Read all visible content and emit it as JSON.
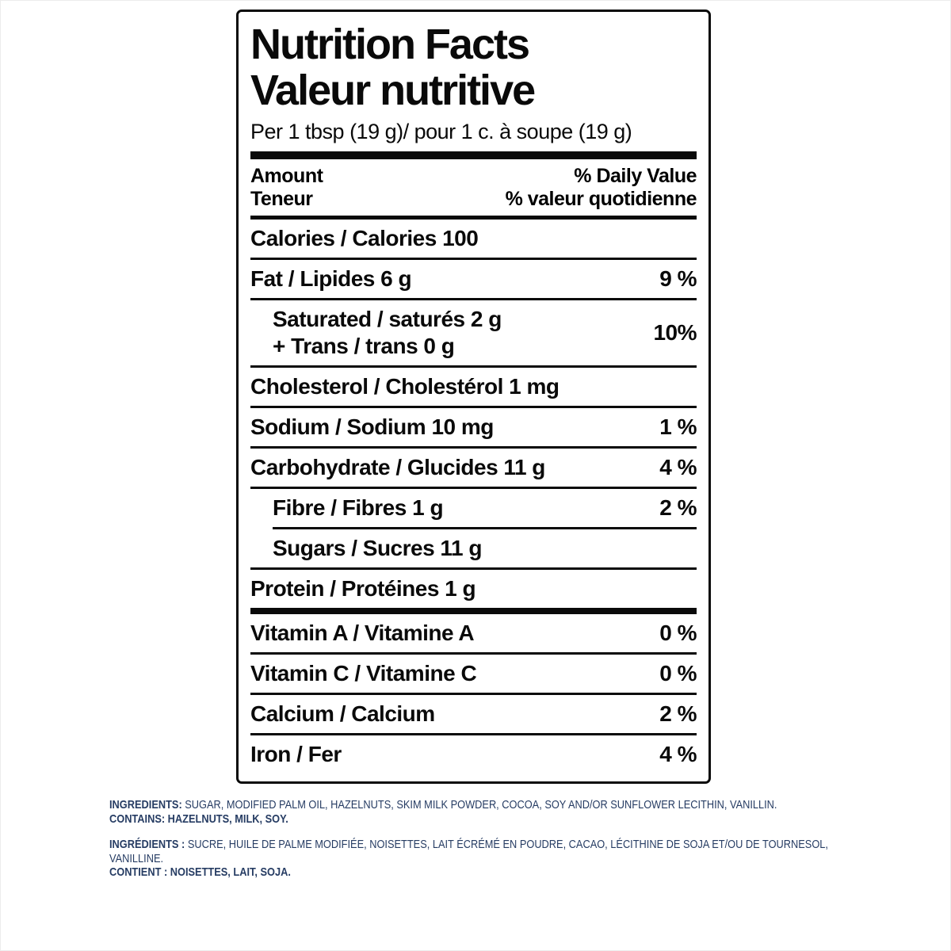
{
  "colors": {
    "ink": "#0a0a0a",
    "ingredients_navy": "#263c63",
    "background": "#ffffff"
  },
  "label": {
    "title_en": "Nutrition Facts",
    "title_fr": "Valeur nutritive",
    "serving": "Per 1 tbsp (19 g)/ pour 1 c. à soupe (19 g)",
    "header": {
      "amount_en": "Amount",
      "amount_fr": "Teneur",
      "daily_value_en": "% Daily Value",
      "daily_value_fr": "% valeur quotidienne"
    },
    "rows": [
      {
        "id": "calories",
        "name": "Calories / Calories 100",
        "value": "",
        "sep": "medium",
        "indent": false
      },
      {
        "id": "fat",
        "name": "Fat / Lipides 6 g",
        "value": "9 %",
        "sep": "thin",
        "indent": false
      },
      {
        "id": "saturated-trans",
        "name": [
          "Saturated / saturés 2 g",
          "+ Trans / trans 0 g"
        ],
        "value": "10%",
        "sep": "thin",
        "indent": true
      },
      {
        "id": "cholesterol",
        "name": "Cholesterol / Cholestérol 1 mg",
        "value": "",
        "sep": "thin",
        "indent": false
      },
      {
        "id": "sodium",
        "name": "Sodium / Sodium 10 mg",
        "value": "1 %",
        "sep": "thin",
        "indent": false
      },
      {
        "id": "carbohydrate",
        "name": "Carbohydrate / Glucides 11 g",
        "value": "4 %",
        "sep": "thin",
        "indent": false
      },
      {
        "id": "fibre",
        "name": "Fibre / Fibres 1 g",
        "value": "2 %",
        "sep": "thin",
        "indent": true
      },
      {
        "id": "sugars",
        "name": "Sugars / Sucres 11 g",
        "value": "",
        "sep": "thin",
        "sep_indent": true,
        "indent": true
      },
      {
        "id": "protein",
        "name": "Protein / Protéines 1 g",
        "value": "",
        "sep": "thin",
        "indent": false
      },
      {
        "id": "vitamin-a",
        "name": "Vitamin A / Vitamine A",
        "value": "0 %",
        "sep": "thick",
        "indent": false
      },
      {
        "id": "vitamin-c",
        "name": "Vitamin C / Vitamine C",
        "value": "0 %",
        "sep": "thin",
        "indent": false
      },
      {
        "id": "calcium",
        "name": "Calcium / Calcium",
        "value": "2 %",
        "sep": "thin",
        "indent": false
      },
      {
        "id": "iron",
        "name": "Iron / Fer",
        "value": "4 %",
        "sep": "thin",
        "indent": false
      }
    ]
  },
  "ingredients_en": {
    "lead": "INGREDIENTS:",
    "body": "SUGAR, MODIFIED PALM OIL, HAZELNUTS, SKIM MILK POWDER, COCOA, SOY AND/OR SUNFLOWER LECITHIN, VANILLIN.",
    "contains": "CONTAINS: HAZELNUTS, MILK, SOY."
  },
  "ingredients_fr": {
    "lead": "INGRÉDIENTS :",
    "body": "SUCRE, HUILE DE PALME MODIFIÉE, NOISETTES, LAIT ÉCRÉMÉ EN POUDRE, CACAO, LÉCITHINE DE SOJA ET/OU DE TOURNESOL,",
    "body2": "VANILLINE.",
    "contains": "CONTIENT : NOISETTES, LAIT, SOJA."
  }
}
